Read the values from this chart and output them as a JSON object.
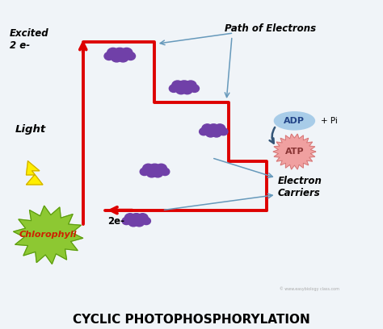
{
  "title": "CYCLIC PHOTOPHOSPHORYLATION",
  "title_fontsize": 11,
  "bg_color": "#f0f4f8",
  "path_of_electrons_label": "Path of Electrons",
  "electron_carriers_label": "Electron\nCarriers",
  "excited_label": "Excited\n2 e-",
  "light_label": "Light",
  "chlorophyll_label": "Chlorophyll",
  "adp_label": "ADP",
  "atp_label": "ATP",
  "pi_label": "+ Pi",
  "two_e_label": "2e-",
  "staircase_color": "#dd0000",
  "adp_color": "#a8cce8",
  "atp_color": "#f0a0a0",
  "chlorophyll_color": "#8dc832",
  "chlorophyll_text_color": "#cc2200",
  "cloud_color": "#7040a8",
  "arrow_color": "#6699bb",
  "light_color": "#ffee00",
  "light_outline": "#ccaa00",
  "figsize": [
    4.74,
    4.08
  ],
  "dpi": 100,
  "xlim": [
    0,
    10
  ],
  "ylim": [
    0,
    9.5
  ]
}
